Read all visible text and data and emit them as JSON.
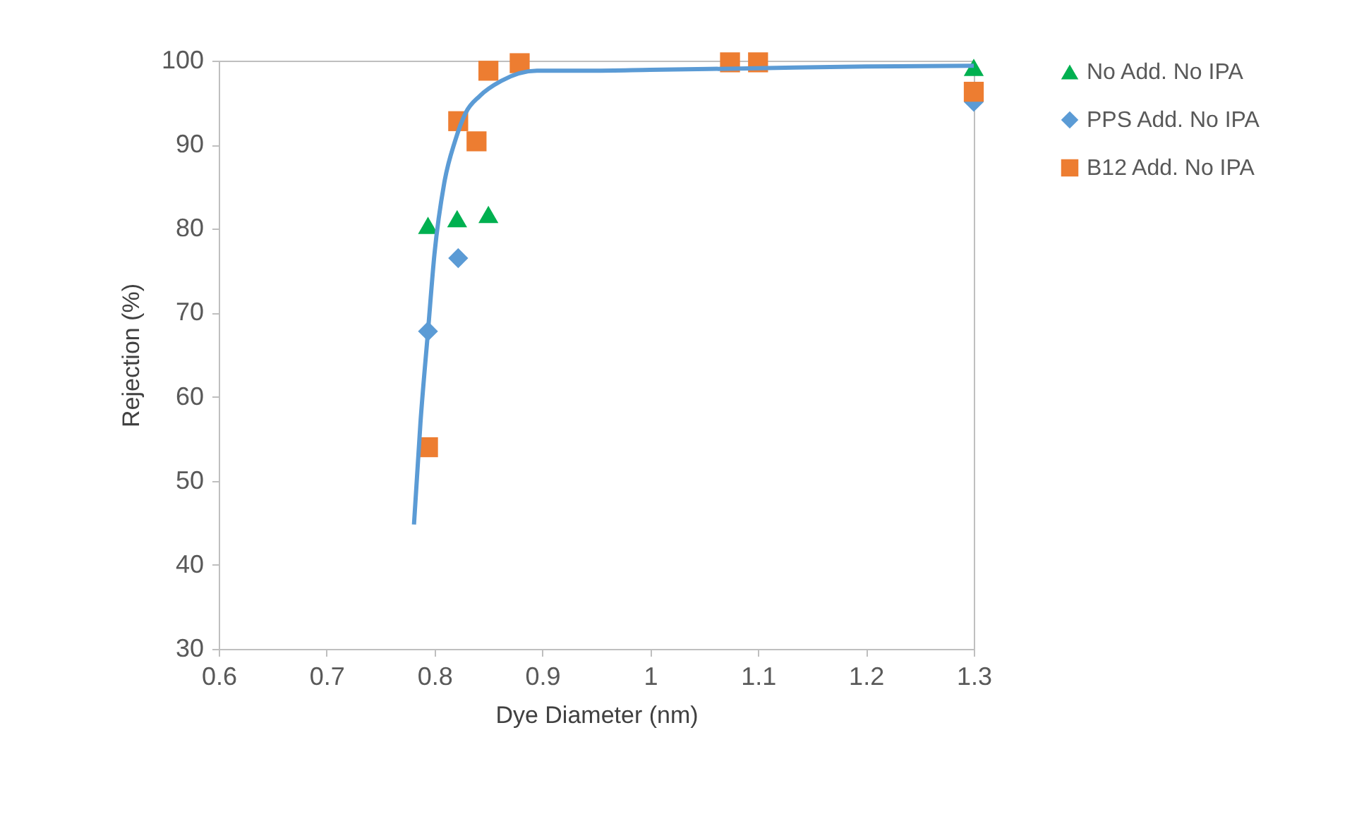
{
  "chart_data": {
    "type": "scatter",
    "xlabel": "Dye Diameter (nm)",
    "ylabel": "Rejection (%)",
    "xlim": [
      0.6,
      1.3
    ],
    "xticks": [
      0.6,
      0.7,
      0.8,
      0.9,
      1,
      1.1,
      1.2,
      1.3
    ],
    "ylim": [
      30,
      100
    ],
    "yticks": [
      30,
      40,
      50,
      60,
      70,
      80,
      90,
      100
    ],
    "grid": false,
    "legend": "right",
    "series": [
      {
        "name": "No Add. No IPA",
        "color": "#00b050",
        "marker": "triangle",
        "x": [
          0.794,
          0.821,
          0.838,
          0.85,
          1.3
        ],
        "values": [
          80.4,
          81.2,
          null,
          81.7,
          99.2
        ]
      },
      {
        "name": "PPS Add. No IPA",
        "color": "#5b9bd5",
        "marker": "diamond",
        "x": [
          0.794,
          0.822,
          1.3
        ],
        "values": [
          67.8,
          76.5,
          95.1
        ]
      },
      {
        "name": "B12 Add. No IPA",
        "color": "#ed7d31",
        "marker": "square",
        "x": [
          0.794,
          0.822,
          0.839,
          0.85,
          0.879,
          1.074,
          1.1,
          1.3
        ],
        "values": [
          54,
          92.8,
          90.4,
          98.8,
          99.7,
          99.8,
          99.8,
          96.3
        ]
      },
      {
        "type": "line",
        "color": "#5b9bd5",
        "marker": "none",
        "x": [
          0.781,
          0.787,
          0.794,
          0.8,
          0.809,
          0.819,
          0.829,
          0.842,
          0.862,
          0.895,
          0.947,
          1,
          1.1,
          1.2,
          1.3
        ],
        "values": [
          44.8,
          56.9,
          67.8,
          77,
          85.4,
          90.4,
          93.8,
          95.8,
          97.6,
          98.8,
          98.8,
          98.9,
          99.1,
          99.3,
          99.4
        ]
      }
    ]
  }
}
